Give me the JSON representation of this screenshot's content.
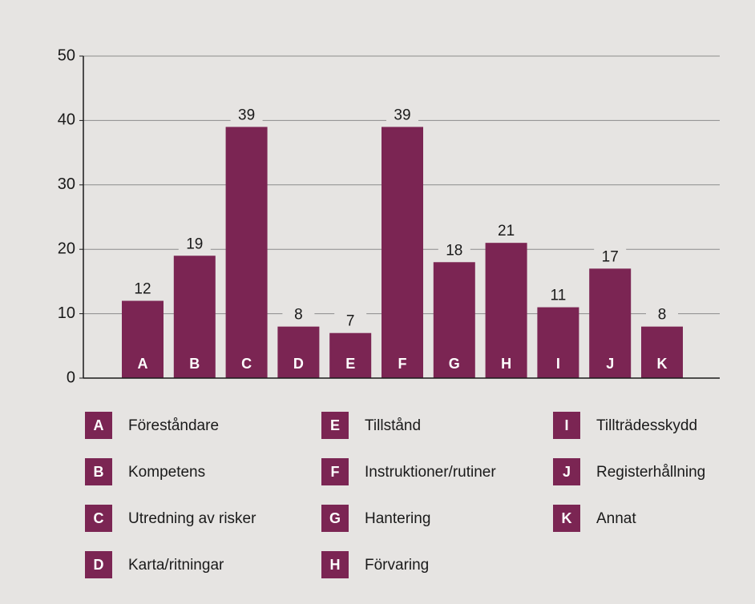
{
  "chart_data": {
    "type": "bar",
    "categories": [
      "A",
      "B",
      "C",
      "D",
      "E",
      "F",
      "G",
      "H",
      "I",
      "J",
      "K"
    ],
    "labels": [
      "Föreståndare",
      "Kompetens",
      "Utredning av risker",
      "Karta/ritningar",
      "Tillstånd",
      "Instruktioner/rutiner",
      "Hantering",
      "Förvaring",
      "Tillträdesskydd",
      "Registerhållning",
      "Annat"
    ],
    "values": [
      12,
      19,
      39,
      8,
      7,
      39,
      18,
      21,
      11,
      17,
      8
    ],
    "color": "#7b2553",
    "ylim": [
      0,
      50
    ],
    "yticks": [
      0,
      10,
      20,
      30,
      40,
      50
    ],
    "grid": true
  }
}
